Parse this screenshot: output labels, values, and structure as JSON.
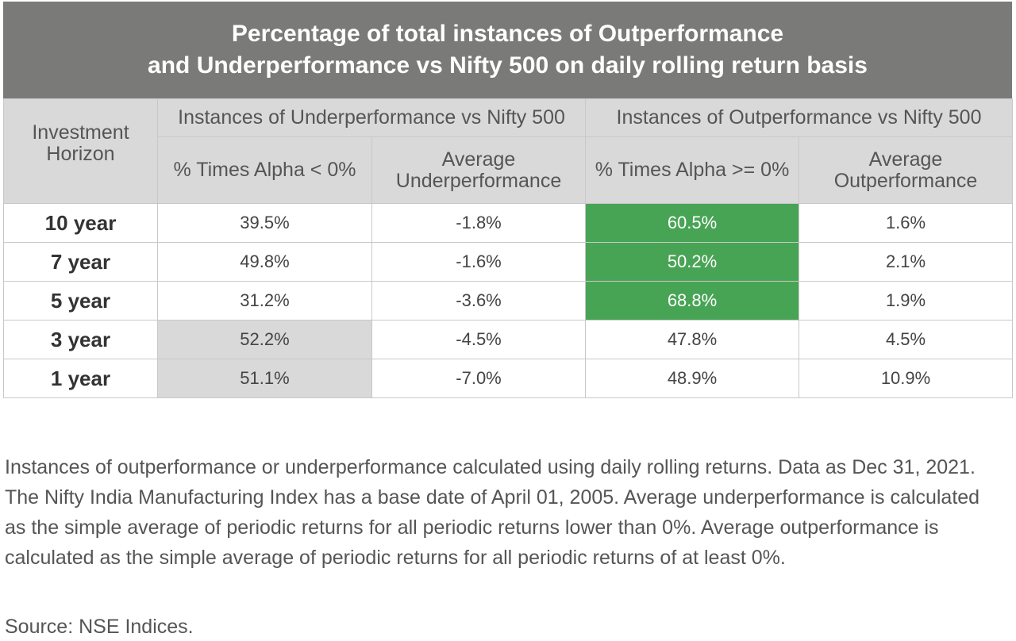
{
  "title": {
    "line1": "Percentage of total instances of Outperformance",
    "line2": "and Underperformance vs Nifty 500 on daily rolling return basis"
  },
  "table": {
    "horizon_header": "Investment Horizon",
    "group_headers": [
      "Instances of Underperformance vs Nifty 500",
      "Instances of Outperformance vs Nifty 500"
    ],
    "sub_headers": [
      "% Times Alpha < 0%",
      "Average Underperformance",
      "% Times Alpha >= 0%",
      "Average Outperformance"
    ],
    "rows": [
      {
        "horizon": "10 year",
        "cells": [
          "39.5%",
          "-1.8%",
          "60.5%",
          "1.6%"
        ]
      },
      {
        "horizon": "7 year",
        "cells": [
          "49.8%",
          "-1.6%",
          "50.2%",
          "2.1%"
        ]
      },
      {
        "horizon": "5 year",
        "cells": [
          "31.2%",
          "-3.6%",
          "68.8%",
          "1.9%"
        ]
      },
      {
        "horizon": "3 year",
        "cells": [
          "52.2%",
          "-4.5%",
          "47.8%",
          "4.5%"
        ]
      },
      {
        "horizon": "1 year",
        "cells": [
          "51.1%",
          "-7.0%",
          "48.9%",
          "10.9%"
        ]
      }
    ]
  },
  "chart_data": {
    "type": "table",
    "title": "Percentage of total instances of Outperformance and Underperformance vs Nifty 500 on daily rolling return basis",
    "columns": [
      "Investment Horizon",
      "% Times Alpha < 0%",
      "Average Underperformance",
      "% Times Alpha >= 0%",
      "Average Outperformance"
    ],
    "rows": [
      [
        "10 year",
        39.5,
        -1.8,
        60.5,
        1.6
      ],
      [
        "7 year",
        49.8,
        -1.6,
        50.2,
        2.1
      ],
      [
        "5 year",
        31.2,
        -3.6,
        68.8,
        1.9
      ],
      [
        "3 year",
        52.2,
        -4.5,
        47.8,
        4.5
      ],
      [
        "1 year",
        51.1,
        -7.0,
        48.9,
        10.9
      ]
    ],
    "highlight_colors": {
      "green": "#48a455",
      "grey": "#d9d9d9"
    }
  },
  "note": "Instances of outperformance or underperformance calculated using daily rolling returns. Data as Dec 31, 2021. The Nifty India Manufacturing Index has a base date of April 01, 2005. Average underperformance is calculated as the simple average of periodic returns for all periodic returns lower than 0%. Average outperformance is calculated as the simple average of periodic returns for all periodic returns of at least 0%.",
  "source": "Source: NSE Indices."
}
